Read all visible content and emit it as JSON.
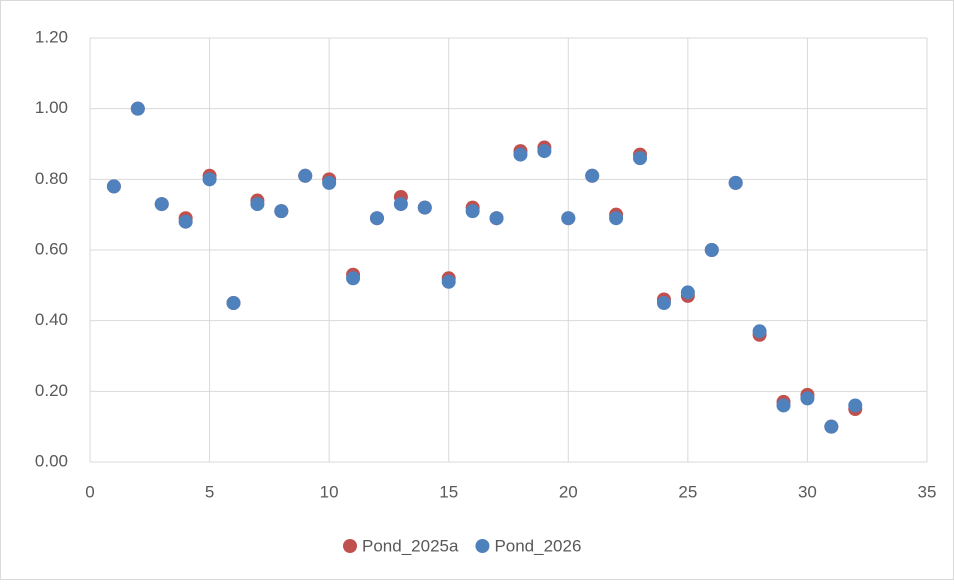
{
  "chart_data": {
    "type": "scatter",
    "x": [
      1,
      2,
      3,
      4,
      5,
      6,
      7,
      8,
      9,
      10,
      11,
      12,
      13,
      14,
      15,
      16,
      17,
      18,
      19,
      20,
      21,
      22,
      23,
      24,
      25,
      26,
      27,
      28,
      29,
      30,
      31,
      32
    ],
    "series": [
      {
        "name": "Pond_2025a",
        "color": "#c0504d",
        "values": [
          0.78,
          1.0,
          0.73,
          0.69,
          0.81,
          0.45,
          0.74,
          0.71,
          0.81,
          0.8,
          0.53,
          0.69,
          0.75,
          0.72,
          0.52,
          0.72,
          0.69,
          0.88,
          0.89,
          0.69,
          0.81,
          0.7,
          0.87,
          0.46,
          0.47,
          0.6,
          0.79,
          0.36,
          0.17,
          0.19,
          0.1,
          0.15
        ]
      },
      {
        "name": "Pond_2026",
        "color": "#4f81bd",
        "values": [
          0.78,
          1.0,
          0.73,
          0.68,
          0.8,
          0.45,
          0.73,
          0.71,
          0.81,
          0.79,
          0.52,
          0.69,
          0.73,
          0.72,
          0.51,
          0.71,
          0.69,
          0.87,
          0.88,
          0.69,
          0.81,
          0.69,
          0.86,
          0.45,
          0.48,
          0.6,
          0.79,
          0.37,
          0.16,
          0.18,
          0.1,
          0.16
        ]
      }
    ],
    "xlim": [
      0,
      35
    ],
    "xticks": [
      0,
      5,
      10,
      15,
      20,
      25,
      30,
      35
    ],
    "ylim": [
      0,
      1.2
    ],
    "yticks": [
      {
        "value": 0,
        "label": "0.00"
      },
      {
        "value": 0.2,
        "label": "0.20"
      },
      {
        "value": 0.4,
        "label": "0.40"
      },
      {
        "value": 0.6,
        "label": "0.60"
      },
      {
        "value": 0.8,
        "label": "0.80"
      },
      {
        "value": 1.0,
        "label": "1.00"
      },
      {
        "value": 1.2,
        "label": "1.20"
      }
    ],
    "grid": true,
    "legend": "bottom"
  }
}
